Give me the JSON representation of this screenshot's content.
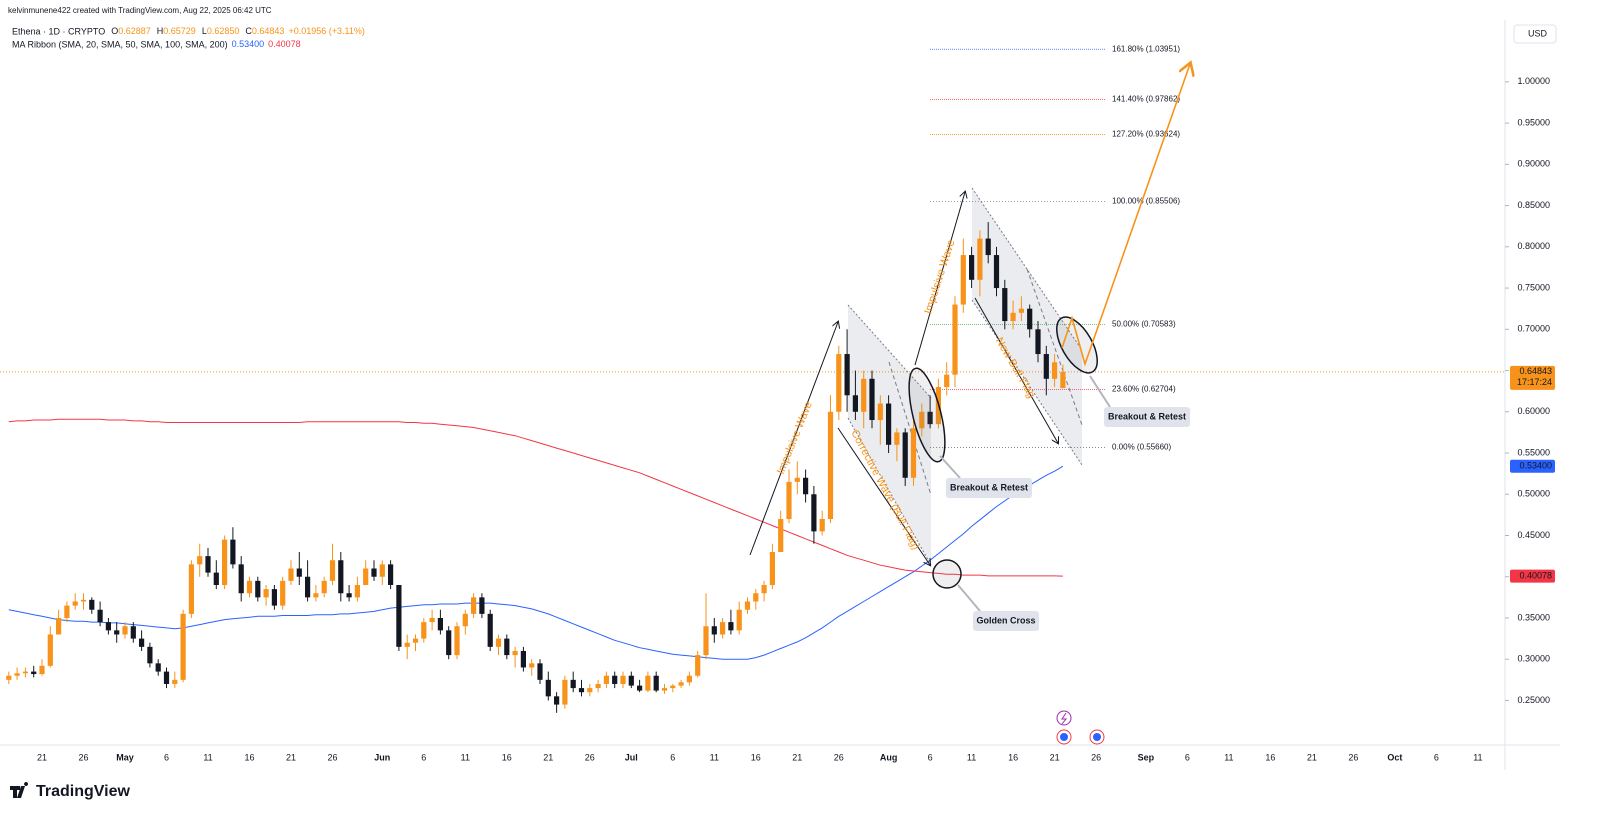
{
  "header": {
    "author": "kelvinmunene422 created with TradingView.com, Aug 22, 2025 06:42 UTC",
    "footer_logo": "TradingView"
  },
  "chart_data": {
    "type": "candlestick",
    "symbol": "Ethena · 1D · CRYPTO",
    "ohlc_legend": [
      {
        "key": "O",
        "value": "0.62887"
      },
      {
        "key": "H",
        "value": "0.65729"
      },
      {
        "key": "L",
        "value": "0.62850"
      },
      {
        "key": "C",
        "value": "0.64843"
      }
    ],
    "change": "+0.01956 (+3.11%)",
    "indicator": "MA Ribbon (SMA, 20, SMA, 50, SMA, 100, SMA, 200)",
    "indicator_values": [
      "0.53400",
      "0.40078"
    ],
    "currency": "USD",
    "up_color": "#f7931a",
    "down_color": "#131722",
    "candles": [
      [
        0.275,
        0.285,
        0.27,
        0.28
      ],
      [
        0.28,
        0.29,
        0.275,
        0.283
      ],
      [
        0.283,
        0.29,
        0.278,
        0.285
      ],
      [
        0.285,
        0.292,
        0.278,
        0.282
      ],
      [
        0.282,
        0.3,
        0.28,
        0.292
      ],
      [
        0.292,
        0.34,
        0.29,
        0.33
      ],
      [
        0.33,
        0.36,
        0.33,
        0.35
      ],
      [
        0.35,
        0.37,
        0.345,
        0.365
      ],
      [
        0.365,
        0.38,
        0.36,
        0.37
      ],
      [
        0.37,
        0.38,
        0.36,
        0.372
      ],
      [
        0.372,
        0.375,
        0.355,
        0.36
      ],
      [
        0.36,
        0.37,
        0.34,
        0.345
      ],
      [
        0.345,
        0.35,
        0.33,
        0.335
      ],
      [
        0.335,
        0.345,
        0.32,
        0.33
      ],
      [
        0.33,
        0.345,
        0.325,
        0.34
      ],
      [
        0.34,
        0.345,
        0.32,
        0.325
      ],
      [
        0.325,
        0.335,
        0.31,
        0.315
      ],
      [
        0.315,
        0.32,
        0.29,
        0.295
      ],
      [
        0.295,
        0.3,
        0.28,
        0.285
      ],
      [
        0.285,
        0.29,
        0.265,
        0.27
      ],
      [
        0.27,
        0.285,
        0.265,
        0.275
      ],
      [
        0.275,
        0.36,
        0.272,
        0.355
      ],
      [
        0.355,
        0.42,
        0.35,
        0.415
      ],
      [
        0.415,
        0.44,
        0.4,
        0.425
      ],
      [
        0.425,
        0.435,
        0.4,
        0.405
      ],
      [
        0.405,
        0.42,
        0.385,
        0.39
      ],
      [
        0.39,
        0.45,
        0.385,
        0.445
      ],
      [
        0.445,
        0.46,
        0.41,
        0.415
      ],
      [
        0.415,
        0.425,
        0.37,
        0.38
      ],
      [
        0.38,
        0.4,
        0.375,
        0.395
      ],
      [
        0.395,
        0.4,
        0.37,
        0.375
      ],
      [
        0.375,
        0.39,
        0.365,
        0.385
      ],
      [
        0.385,
        0.39,
        0.36,
        0.365
      ],
      [
        0.365,
        0.4,
        0.36,
        0.395
      ],
      [
        0.395,
        0.42,
        0.39,
        0.41
      ],
      [
        0.41,
        0.43,
        0.39,
        0.4
      ],
      [
        0.4,
        0.42,
        0.37,
        0.375
      ],
      [
        0.375,
        0.39,
        0.37,
        0.38
      ],
      [
        0.38,
        0.4,
        0.375,
        0.395
      ],
      [
        0.395,
        0.44,
        0.39,
        0.42
      ],
      [
        0.42,
        0.43,
        0.37,
        0.38
      ],
      [
        0.38,
        0.39,
        0.37,
        0.375
      ],
      [
        0.375,
        0.4,
        0.37,
        0.39
      ],
      [
        0.39,
        0.42,
        0.39,
        0.41
      ],
      [
        0.41,
        0.42,
        0.395,
        0.4
      ],
      [
        0.4,
        0.42,
        0.39,
        0.415
      ],
      [
        0.415,
        0.42,
        0.385,
        0.39
      ],
      [
        0.39,
        0.39,
        0.31,
        0.315
      ],
      [
        0.315,
        0.33,
        0.3,
        0.32
      ],
      [
        0.32,
        0.33,
        0.31,
        0.325
      ],
      [
        0.325,
        0.35,
        0.32,
        0.345
      ],
      [
        0.345,
        0.36,
        0.335,
        0.35
      ],
      [
        0.35,
        0.36,
        0.33,
        0.335
      ],
      [
        0.335,
        0.34,
        0.3,
        0.305
      ],
      [
        0.305,
        0.345,
        0.3,
        0.34
      ],
      [
        0.34,
        0.36,
        0.33,
        0.355
      ],
      [
        0.355,
        0.38,
        0.35,
        0.375
      ],
      [
        0.375,
        0.38,
        0.35,
        0.355
      ],
      [
        0.355,
        0.36,
        0.31,
        0.315
      ],
      [
        0.315,
        0.33,
        0.305,
        0.325
      ],
      [
        0.325,
        0.33,
        0.3,
        0.305
      ],
      [
        0.305,
        0.315,
        0.29,
        0.31
      ],
      [
        0.31,
        0.315,
        0.285,
        0.29
      ],
      [
        0.29,
        0.3,
        0.28,
        0.295
      ],
      [
        0.295,
        0.3,
        0.27,
        0.275
      ],
      [
        0.275,
        0.285,
        0.25,
        0.255
      ],
      [
        0.255,
        0.26,
        0.235,
        0.245
      ],
      [
        0.245,
        0.28,
        0.24,
        0.275
      ],
      [
        0.275,
        0.285,
        0.26,
        0.265
      ],
      [
        0.265,
        0.275,
        0.255,
        0.26
      ],
      [
        0.26,
        0.27,
        0.255,
        0.265
      ],
      [
        0.265,
        0.275,
        0.26,
        0.27
      ],
      [
        0.27,
        0.285,
        0.265,
        0.28
      ],
      [
        0.28,
        0.285,
        0.265,
        0.27
      ],
      [
        0.27,
        0.285,
        0.265,
        0.28
      ],
      [
        0.28,
        0.285,
        0.265,
        0.268
      ],
      [
        0.268,
        0.275,
        0.26,
        0.262
      ],
      [
        0.262,
        0.285,
        0.26,
        0.28
      ],
      [
        0.28,
        0.285,
        0.26,
        0.262
      ],
      [
        0.262,
        0.27,
        0.258,
        0.265
      ],
      [
        0.265,
        0.27,
        0.26,
        0.268
      ],
      [
        0.268,
        0.275,
        0.265,
        0.272
      ],
      [
        0.272,
        0.285,
        0.268,
        0.28
      ],
      [
        0.28,
        0.31,
        0.278,
        0.305
      ],
      [
        0.305,
        0.38,
        0.3,
        0.34
      ],
      [
        0.34,
        0.35,
        0.32,
        0.33
      ],
      [
        0.33,
        0.35,
        0.325,
        0.345
      ],
      [
        0.345,
        0.36,
        0.33,
        0.335
      ],
      [
        0.335,
        0.37,
        0.33,
        0.36
      ],
      [
        0.36,
        0.375,
        0.355,
        0.37
      ],
      [
        0.37,
        0.385,
        0.36,
        0.38
      ],
      [
        0.38,
        0.395,
        0.37,
        0.39
      ],
      [
        0.39,
        0.44,
        0.385,
        0.43
      ],
      [
        0.43,
        0.48,
        0.43,
        0.47
      ],
      [
        0.47,
        0.53,
        0.465,
        0.515
      ],
      [
        0.515,
        0.54,
        0.5,
        0.52
      ],
      [
        0.52,
        0.53,
        0.49,
        0.5
      ],
      [
        0.5,
        0.51,
        0.44,
        0.455
      ],
      [
        0.455,
        0.48,
        0.45,
        0.47
      ],
      [
        0.47,
        0.62,
        0.465,
        0.6
      ],
      [
        0.6,
        0.68,
        0.59,
        0.67
      ],
      [
        0.67,
        0.7,
        0.6,
        0.62
      ],
      [
        0.62,
        0.65,
        0.59,
        0.6
      ],
      [
        0.6,
        0.65,
        0.58,
        0.64
      ],
      [
        0.64,
        0.65,
        0.58,
        0.59
      ],
      [
        0.59,
        0.62,
        0.56,
        0.61
      ],
      [
        0.61,
        0.62,
        0.55,
        0.56
      ],
      [
        0.56,
        0.58,
        0.54,
        0.575
      ],
      [
        0.575,
        0.58,
        0.51,
        0.52
      ],
      [
        0.52,
        0.59,
        0.51,
        0.58
      ],
      [
        0.58,
        0.61,
        0.57,
        0.6
      ],
      [
        0.6,
        0.62,
        0.58,
        0.585
      ],
      [
        0.585,
        0.64,
        0.58,
        0.63
      ],
      [
        0.63,
        0.66,
        0.62,
        0.645
      ],
      [
        0.645,
        0.74,
        0.63,
        0.73
      ],
      [
        0.73,
        0.81,
        0.72,
        0.79
      ],
      [
        0.79,
        0.8,
        0.75,
        0.76
      ],
      [
        0.76,
        0.82,
        0.74,
        0.81
      ],
      [
        0.81,
        0.83,
        0.78,
        0.79
      ],
      [
        0.79,
        0.8,
        0.74,
        0.75
      ],
      [
        0.75,
        0.76,
        0.7,
        0.71
      ],
      [
        0.71,
        0.735,
        0.7,
        0.72
      ],
      [
        0.72,
        0.74,
        0.71,
        0.725
      ],
      [
        0.725,
        0.73,
        0.69,
        0.7
      ],
      [
        0.7,
        0.71,
        0.66,
        0.67
      ],
      [
        0.67,
        0.68,
        0.62,
        0.64
      ],
      [
        0.64,
        0.67,
        0.63,
        0.66
      ],
      [
        0.62887,
        0.65729,
        0.6285,
        0.64843
      ]
    ],
    "moving_averages": [
      {
        "color": "#2962ff",
        "values": [
          0.36,
          0.358,
          0.356,
          0.354,
          0.352,
          0.35,
          0.348,
          0.347,
          0.346,
          0.346,
          0.345,
          0.345,
          0.344,
          0.344,
          0.343,
          0.342,
          0.341,
          0.34,
          0.339,
          0.338,
          0.337,
          0.338,
          0.34,
          0.342,
          0.344,
          0.346,
          0.348,
          0.349,
          0.35,
          0.351,
          0.352,
          0.352,
          0.352,
          0.353,
          0.353,
          0.353,
          0.353,
          0.354,
          0.354,
          0.354,
          0.355,
          0.355,
          0.356,
          0.357,
          0.358,
          0.36,
          0.362,
          0.363,
          0.364,
          0.365,
          0.366,
          0.366,
          0.367,
          0.367,
          0.367,
          0.368,
          0.368,
          0.368,
          0.368,
          0.367,
          0.366,
          0.365,
          0.363,
          0.361,
          0.358,
          0.355,
          0.351,
          0.347,
          0.343,
          0.339,
          0.335,
          0.331,
          0.327,
          0.323,
          0.32,
          0.317,
          0.314,
          0.312,
          0.31,
          0.308,
          0.306,
          0.305,
          0.304,
          0.303,
          0.302,
          0.301,
          0.3,
          0.3,
          0.3,
          0.3,
          0.302,
          0.305,
          0.309,
          0.313,
          0.317,
          0.321,
          0.326,
          0.332,
          0.338,
          0.345,
          0.352,
          0.358,
          0.364,
          0.37,
          0.376,
          0.382,
          0.388,
          0.394,
          0.4,
          0.406,
          0.413,
          0.42,
          0.428,
          0.436,
          0.444,
          0.452,
          0.461,
          0.469,
          0.477,
          0.485,
          0.492,
          0.499,
          0.505,
          0.511,
          0.517,
          0.523,
          0.528,
          0.534
        ]
      },
      {
        "color": "#f23645",
        "values": [
          0.588,
          0.589,
          0.589,
          0.59,
          0.59,
          0.59,
          0.591,
          0.591,
          0.591,
          0.591,
          0.591,
          0.591,
          0.59,
          0.59,
          0.59,
          0.589,
          0.589,
          0.588,
          0.588,
          0.587,
          0.587,
          0.587,
          0.587,
          0.587,
          0.587,
          0.587,
          0.587,
          0.587,
          0.587,
          0.587,
          0.587,
          0.587,
          0.587,
          0.587,
          0.587,
          0.587,
          0.588,
          0.588,
          0.588,
          0.588,
          0.588,
          0.588,
          0.588,
          0.588,
          0.588,
          0.588,
          0.588,
          0.588,
          0.587,
          0.587,
          0.586,
          0.586,
          0.585,
          0.584,
          0.583,
          0.582,
          0.581,
          0.579,
          0.577,
          0.575,
          0.573,
          0.571,
          0.568,
          0.565,
          0.562,
          0.559,
          0.556,
          0.553,
          0.55,
          0.547,
          0.544,
          0.541,
          0.538,
          0.535,
          0.532,
          0.529,
          0.526,
          0.522,
          0.518,
          0.514,
          0.51,
          0.506,
          0.502,
          0.498,
          0.494,
          0.49,
          0.486,
          0.482,
          0.478,
          0.474,
          0.47,
          0.466,
          0.462,
          0.458,
          0.454,
          0.45,
          0.446,
          0.442,
          0.438,
          0.434,
          0.43,
          0.426,
          0.423,
          0.42,
          0.417,
          0.414,
          0.412,
          0.41,
          0.408,
          0.407,
          0.406,
          0.405,
          0.404,
          0.403,
          0.403,
          0.402,
          0.402,
          0.402,
          0.401,
          0.401,
          0.401,
          0.401,
          0.401,
          0.401,
          0.401,
          0.401,
          0.401,
          0.40078
        ]
      }
    ],
    "ylim": [
      0.196,
      1.075
    ],
    "yticks": [
      {
        "value": 0.25,
        "label": "0.25000"
      },
      {
        "value": 0.3,
        "label": "0.30000"
      },
      {
        "value": 0.35,
        "label": "0.35000"
      },
      {
        "value": 0.4,
        "label": "0.40000"
      },
      {
        "value": 0.45,
        "label": "0.45000"
      },
      {
        "value": 0.5,
        "label": "0.50000"
      },
      {
        "value": 0.55,
        "label": "0.55000"
      },
      {
        "value": 0.6,
        "label": "0.60000"
      },
      {
        "value": 0.65,
        "label": "0.65000"
      },
      {
        "value": 0.7,
        "label": "0.70000"
      },
      {
        "value": 0.75,
        "label": "0.75000"
      },
      {
        "value": 0.8,
        "label": "0.80000"
      },
      {
        "value": 0.85,
        "label": "0.85000"
      },
      {
        "value": 0.9,
        "label": "0.90000"
      },
      {
        "value": 0.95,
        "label": "0.95000"
      },
      {
        "value": 1,
        "label": "1.00000"
      }
    ],
    "x_axis_labels": [
      "21",
      "26",
      "May",
      "6",
      "11",
      "16",
      "21",
      "26",
      "Jun",
      "6",
      "11",
      "16",
      "21",
      "26",
      "Jul",
      "6",
      "11",
      "16",
      "21",
      "26",
      "Aug",
      "6",
      "11",
      "16",
      "21",
      "26",
      "Sep",
      "6",
      "11",
      "16",
      "21",
      "26",
      "Oct",
      "6",
      "11"
    ],
    "price_labels": [
      {
        "value": 0.64843,
        "label": "0.64843",
        "sub": "17:17:24",
        "color": "#f7931a"
      },
      {
        "value": 0.534,
        "label": "0.53400",
        "color": "#2962ff"
      },
      {
        "value": 0.40078,
        "label": "0.40078",
        "color": "#f23645"
      }
    ],
    "fib_levels": [
      {
        "value": 1.03951,
        "label": "161.80% (1.03951)",
        "color": "#2962ff"
      },
      {
        "value": 0.97862,
        "label": "141.40% (0.97862)",
        "color": "#f23645"
      },
      {
        "value": 0.93624,
        "label": "127.20% (0.93624)",
        "color": "#f7931a"
      },
      {
        "value": 0.85506,
        "label": "100.00% (0.85506)",
        "color": "#787b86"
      },
      {
        "value": 0.70583,
        "label": "50.00% (0.70583)",
        "color": "#4caf50"
      },
      {
        "value": 0.62704,
        "label": "23.60% (0.62704)",
        "color": "#f23645"
      },
      {
        "value": 0.5566,
        "label": "0.00% (0.55660)",
        "color": "#787b86"
      }
    ],
    "annotations": [
      "Impulsive Wave",
      "Corrective Wave (Bull Flag)",
      "Impulsive Wave",
      "New Bull Flag"
    ],
    "callouts": [
      "Breakout & Retest",
      "Golden Cross",
      "Breakout & Retest"
    ]
  }
}
